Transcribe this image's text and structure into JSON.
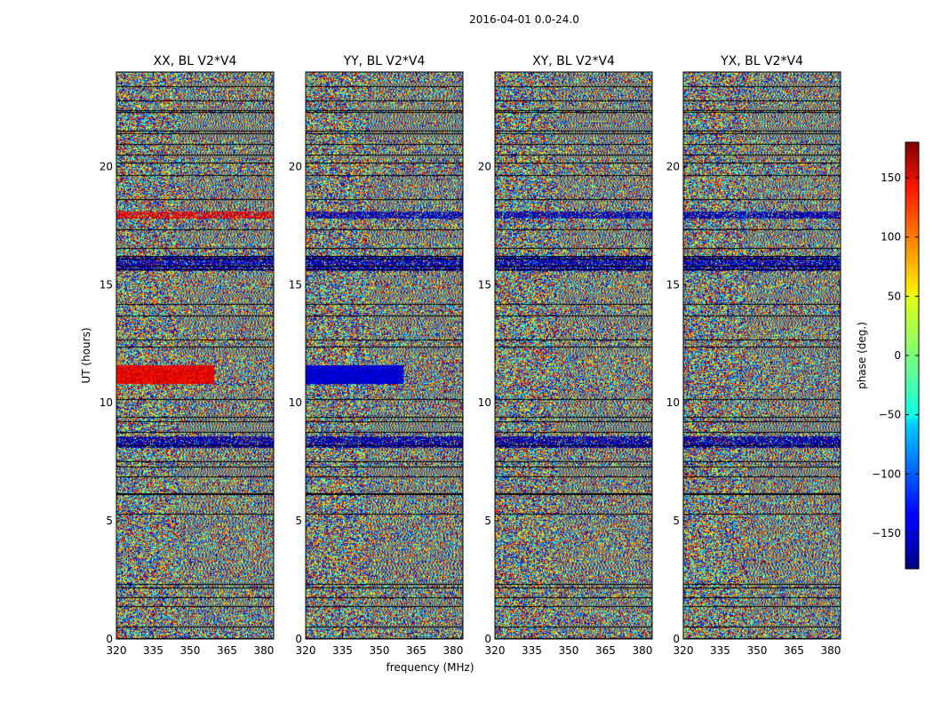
{
  "chart_data": {
    "type": "heatmap",
    "suptitle": "2016-04-01 0.0-24.0",
    "xlabel": "frequency (MHz)",
    "ylabel": "UT (hours)",
    "xlim": [
      320,
      384
    ],
    "ylim": [
      0,
      24
    ],
    "xticks": [
      320,
      335,
      350,
      365,
      380
    ],
    "yticks": [
      0,
      5,
      10,
      15,
      20
    ],
    "panels": [
      {
        "title": "XX, BL V2*V4",
        "band_bias": "red"
      },
      {
        "title": "YY, BL V2*V4",
        "band_bias": "blue"
      },
      {
        "title": "XY, BL V2*V4",
        "band_bias": "none"
      },
      {
        "title": "YX, BL V2*V4",
        "band_bias": "none"
      }
    ],
    "colorbar": {
      "label": "phase (deg.)",
      "range": [
        -180,
        180
      ],
      "ticks": [
        -150,
        -100,
        -50,
        0,
        50,
        100,
        150
      ],
      "colormap": "jet"
    }
  }
}
